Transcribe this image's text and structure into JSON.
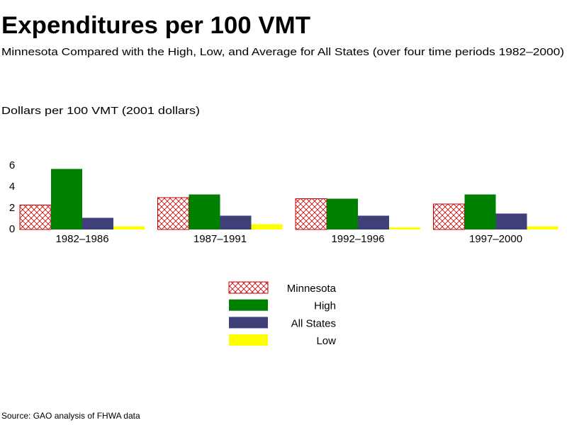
{
  "chart_data": {
    "type": "bar",
    "title": "Expenditures per 100 VMT",
    "subtitle": "Minnesota Compared with the High, Low, and Average for All States (over four time periods 1982–2000)",
    "y_label": "Dollars per 100 VMT   (2001 dollars)",
    "categories": [
      "1982–1986",
      "1987–1991",
      "1992–1996",
      "1997–2000"
    ],
    "series": [
      {
        "name": "Minnesota",
        "color": "#cc0000",
        "hatch": true,
        "values": [
          2.3,
          3.0,
          2.9,
          2.4
        ]
      },
      {
        "name": "High",
        "color": "#008000",
        "values": [
          5.7,
          3.3,
          2.9,
          3.3
        ]
      },
      {
        "name": "All States",
        "color": "#3f3f7a",
        "values": [
          1.1,
          1.3,
          1.3,
          1.5
        ]
      },
      {
        "name": "Low",
        "color": "#ffff00",
        "values": [
          0.3,
          0.5,
          0.2,
          0.3
        ]
      }
    ],
    "ylim": [
      0,
      6
    ],
    "yticks": [
      0,
      2,
      4,
      6
    ],
    "grid": false,
    "source": "Source: GAO analysis of FHWA data"
  }
}
